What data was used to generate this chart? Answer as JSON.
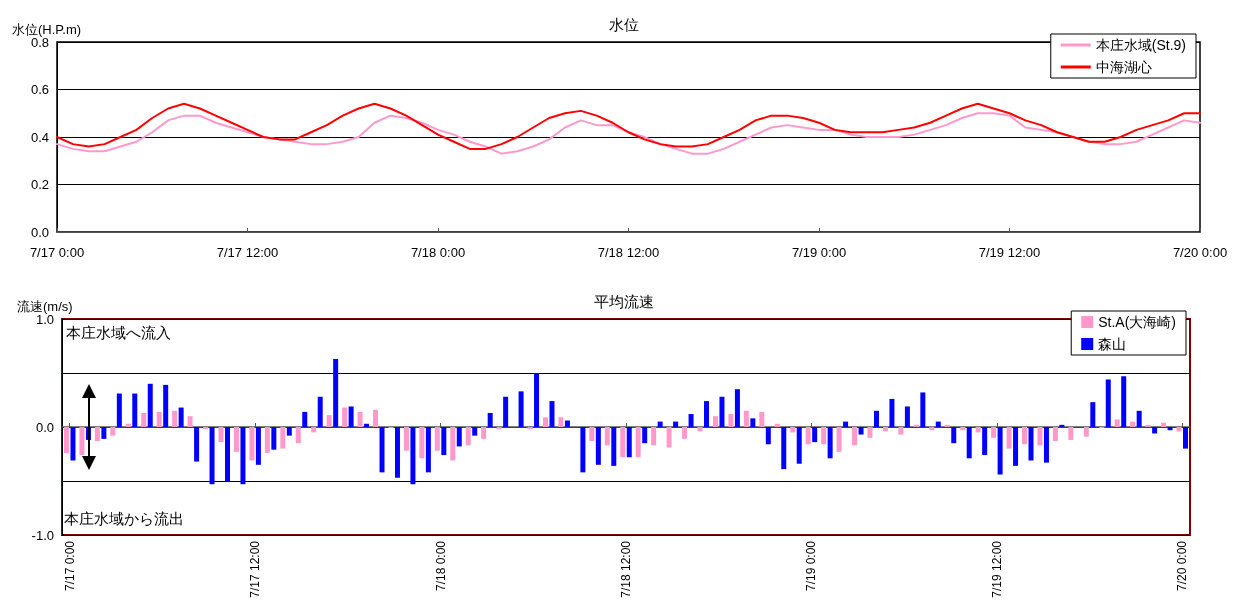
{
  "chart_data": [
    {
      "type": "line",
      "title": "水位",
      "ylabel": "水位(H.P.m)",
      "categories": [
        "7/17 0:00",
        null,
        null,
        null,
        null,
        null,
        null,
        null,
        null,
        null,
        null,
        null,
        "7/17 12:00",
        null,
        null,
        null,
        null,
        null,
        null,
        null,
        null,
        null,
        null,
        null,
        "7/18 0:00",
        null,
        null,
        null,
        null,
        null,
        null,
        null,
        null,
        null,
        null,
        null,
        "7/18 12:00",
        null,
        null,
        null,
        null,
        null,
        null,
        null,
        null,
        null,
        null,
        null,
        "7/19 0:00",
        null,
        null,
        null,
        null,
        null,
        null,
        null,
        null,
        null,
        null,
        null,
        "7/19 12:00",
        null,
        null,
        null,
        null,
        null,
        null,
        null,
        null,
        null,
        null,
        null,
        "7/20 0:00"
      ],
      "ylim": [
        0,
        0.8
      ],
      "yticks": [
        {
          "value": 0,
          "label": "0.0"
        },
        {
          "value": 0.2,
          "label": "0.2"
        },
        {
          "value": 0.4,
          "label": "0.4"
        },
        {
          "value": 0.6,
          "label": "0.6"
        },
        {
          "value": 0.8,
          "label": "0.8"
        }
      ],
      "grid": "y",
      "legend": "top right",
      "marker": "none",
      "line_style": "solid",
      "series": [
        {
          "name": "本庄水域(St.9)",
          "color": "#ff99cc",
          "values": [
            0.37,
            0.35,
            0.34,
            0.34,
            0.36,
            0.38,
            0.42,
            0.47,
            0.49,
            0.49,
            0.46,
            0.44,
            0.42,
            0.4,
            0.39,
            0.38,
            0.37,
            0.37,
            0.38,
            0.4,
            0.46,
            0.49,
            0.48,
            0.46,
            0.43,
            0.41,
            0.38,
            0.36,
            0.33,
            0.34,
            0.36,
            0.39,
            0.44,
            0.47,
            0.45,
            0.45,
            0.42,
            0.4,
            0.37,
            0.35,
            0.33,
            0.33,
            0.35,
            0.38,
            0.41,
            0.44,
            0.45,
            0.44,
            0.43,
            0.43,
            0.41,
            0.4,
            0.4,
            0.4,
            0.41,
            0.43,
            0.45,
            0.48,
            0.5,
            0.5,
            0.49,
            0.44,
            0.43,
            0.42,
            0.4,
            0.38,
            0.37,
            0.37,
            0.38,
            0.41,
            0.44,
            0.47,
            0.46
          ]
        },
        {
          "name": "中海湖心",
          "color": "#ff0000",
          "values": [
            0.4,
            0.37,
            0.36,
            0.37,
            0.4,
            0.43,
            0.48,
            0.52,
            0.54,
            0.52,
            0.49,
            0.46,
            0.43,
            0.4,
            0.39,
            0.39,
            0.42,
            0.45,
            0.49,
            0.52,
            0.54,
            0.52,
            0.49,
            0.45,
            0.41,
            0.38,
            0.35,
            0.35,
            0.37,
            0.4,
            0.44,
            0.48,
            0.5,
            0.51,
            0.49,
            0.46,
            0.42,
            0.39,
            0.37,
            0.36,
            0.36,
            0.37,
            0.4,
            0.43,
            0.47,
            0.49,
            0.49,
            0.48,
            0.46,
            0.43,
            0.42,
            0.42,
            0.42,
            0.43,
            0.44,
            0.46,
            0.49,
            0.52,
            0.54,
            0.52,
            0.5,
            0.47,
            0.45,
            0.42,
            0.4,
            0.38,
            0.38,
            0.4,
            0.43,
            0.45,
            0.47,
            0.5,
            0.5
          ]
        }
      ]
    },
    {
      "type": "bar",
      "title": "平均流速",
      "ylabel": "流速(m/s)",
      "annotations": [
        "本庄水域へ流入",
        "本庄水域から流出"
      ],
      "categories": [
        "7/17 0:00",
        null,
        null,
        null,
        null,
        null,
        null,
        null,
        null,
        null,
        null,
        null,
        "7/17 12:00",
        null,
        null,
        null,
        null,
        null,
        null,
        null,
        null,
        null,
        null,
        null,
        "7/18 0:00",
        null,
        null,
        null,
        null,
        null,
        null,
        null,
        null,
        null,
        null,
        null,
        "7/18 12:00",
        null,
        null,
        null,
        null,
        null,
        null,
        null,
        null,
        null,
        null,
        null,
        "7/19 0:00",
        null,
        null,
        null,
        null,
        null,
        null,
        null,
        null,
        null,
        null,
        null,
        "7/19 12:00",
        null,
        null,
        null,
        null,
        null,
        null,
        null,
        null,
        null,
        null,
        null,
        "7/20 0:00"
      ],
      "ylim": [
        -1,
        1
      ],
      "yticks": [
        {
          "value": -1,
          "label": "-1.0"
        },
        {
          "value": -0.5,
          "label": null
        },
        {
          "value": 0,
          "label": "0.0"
        },
        {
          "value": 0.5,
          "label": null
        },
        {
          "value": 1,
          "label": "1.0"
        }
      ],
      "grid": "y",
      "legend": "top right",
      "series": [
        {
          "name": "St.A(大海崎)",
          "color": "#ff99cc",
          "values": [
            -0.24,
            -0.26,
            -0.13,
            -0.08,
            0.03,
            0.13,
            0.14,
            0.15,
            0.1,
            -0.02,
            -0.14,
            -0.23,
            -0.31,
            -0.24,
            -0.2,
            -0.15,
            -0.05,
            0.11,
            0.18,
            0.14,
            0.16,
            -0.01,
            -0.22,
            -0.29,
            -0.22,
            -0.31,
            -0.17,
            -0.11,
            -0.02,
            0.0,
            -0.02,
            0.09,
            0.09,
            0.0,
            -0.13,
            -0.17,
            -0.28,
            -0.28,
            -0.17,
            -0.19,
            -0.11,
            -0.04,
            0.1,
            0.12,
            0.15,
            0.14,
            0.03,
            -0.05,
            -0.16,
            -0.16,
            -0.23,
            -0.17,
            -0.1,
            -0.04,
            -0.07,
            0.02,
            -0.03,
            0.02,
            -0.03,
            -0.05,
            -0.1,
            -0.2,
            -0.16,
            -0.17,
            -0.13,
            -0.12,
            -0.09,
            -0.01,
            0.07,
            0.05,
            0.02,
            0.04,
            -0.04
          ]
        },
        {
          "name": "森山",
          "color": "#0000ff",
          "values": [
            -0.31,
            -0.12,
            -0.11,
            0.31,
            0.31,
            0.4,
            0.39,
            0.18,
            -0.32,
            -0.53,
            -0.5,
            -0.53,
            -0.35,
            -0.21,
            -0.08,
            0.14,
            0.28,
            0.63,
            0.19,
            0.03,
            -0.42,
            -0.47,
            -0.53,
            -0.42,
            -0.26,
            -0.18,
            -0.08,
            0.13,
            0.28,
            0.33,
            0.5,
            0.24,
            0.06,
            -0.42,
            -0.35,
            -0.36,
            -0.28,
            -0.15,
            0.05,
            0.05,
            0.12,
            0.24,
            0.28,
            0.35,
            0.08,
            -0.16,
            -0.39,
            -0.34,
            -0.14,
            -0.29,
            0.05,
            -0.07,
            0.15,
            0.26,
            0.19,
            0.32,
            0.05,
            -0.15,
            -0.29,
            -0.26,
            -0.44,
            -0.36,
            -0.31,
            -0.33,
            0.02,
            0.0,
            0.23,
            0.44,
            0.47,
            0.15,
            -0.06,
            -0.03,
            -0.2
          ]
        }
      ]
    }
  ]
}
